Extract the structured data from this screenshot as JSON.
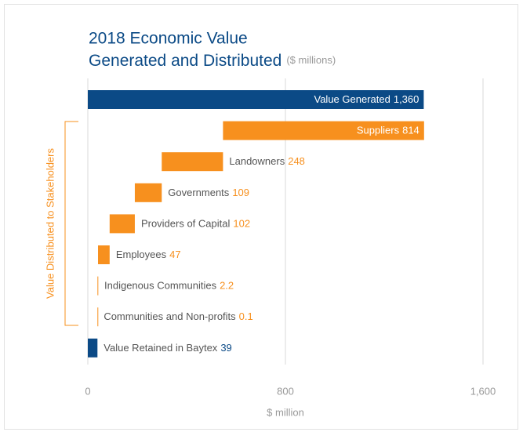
{
  "chart_data": {
    "type": "waterfall",
    "title": [
      "2018 Economic Value",
      "Generated and Distributed"
    ],
    "subtitle": "($ millions)",
    "categories": [
      "Value Generated",
      "Suppliers",
      "Landowners",
      "Governments",
      "Providers of Capital",
      "Employees",
      "Indigenous Communities",
      "Communities and Non-profits",
      "Value Retained in Baytex"
    ],
    "values": [
      1360,
      814,
      248,
      109,
      102,
      47,
      2.2,
      0.1,
      39
    ],
    "value_labels": [
      "1,360",
      "814",
      "248",
      "109",
      "102",
      "47",
      "2.2",
      "0.1",
      "39"
    ],
    "colors": [
      "#0b4a86",
      "#f7901e",
      "#f7901e",
      "#f7901e",
      "#f7901e",
      "#f7901e",
      "#f7901e",
      "#f7901e",
      "#0b4a86"
    ],
    "bracket_label": "Value Distributed to Stakeholders",
    "xlim": [
      0,
      1600
    ],
    "xticks": [
      0,
      800,
      {
        "value": 1600,
        "label": "1,600"
      }
    ],
    "xlabel": "$ million",
    "grid": true
  }
}
